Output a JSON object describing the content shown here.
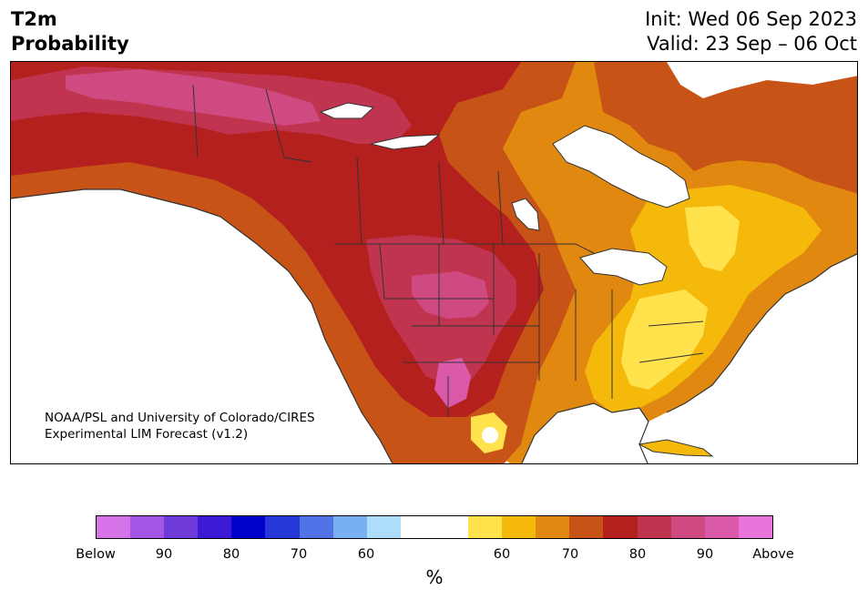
{
  "title": {
    "line1": "T2m",
    "line2": "Probability",
    "init": "Init: Wed 06 Sep 2023",
    "valid": "Valid: 23 Sep – 06 Oct"
  },
  "credit": {
    "line1": "NOAA/PSL and University of Colorado/CIRES",
    "line2": "Experimental LIM Forecast (v1.2)"
  },
  "colorbar": {
    "unit": "%",
    "colors": [
      "#d773e8",
      "#a455e3",
      "#6e3bd8",
      "#3c19d4",
      "#0000cd",
      "#2637d8",
      "#5273e8",
      "#79aff3",
      "#aedcfb",
      "#ffffff",
      "#ffffff",
      "#ffe24c",
      "#f4b90b",
      "#e0880f",
      "#c85316",
      "#b3201e",
      "#c1344f",
      "#cf4a80",
      "#da5aa9",
      "#e874dc"
    ],
    "ticks": [
      "Below",
      "90",
      "80",
      "70",
      "60",
      "60",
      "70",
      "80",
      "90",
      "Above"
    ]
  },
  "map": {
    "fills": {
      "deep_red": "#b3201e",
      "rose": "#c1344f",
      "pink": "#cf4a80",
      "light_pink": "#da5aa9",
      "dark_orange": "#c85316",
      "orange": "#e0880f",
      "gold": "#f4b90b",
      "yellow": "#ffe24c",
      "water": "#ffffff",
      "border": "#333333"
    }
  }
}
